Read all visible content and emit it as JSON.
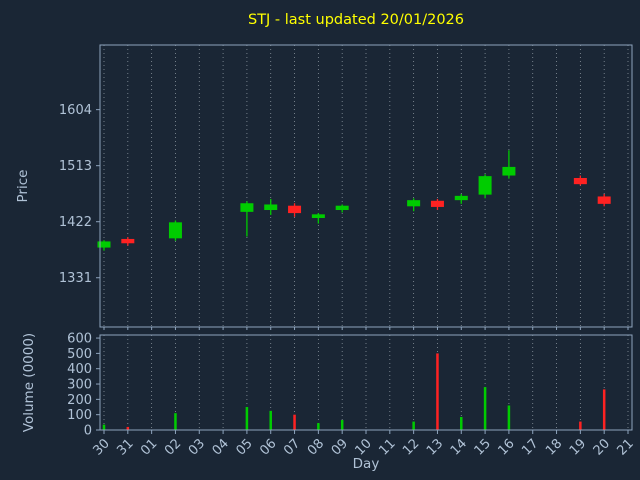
{
  "chart_data": {
    "type": "candlestick",
    "title": "STJ - last updated 20/01/2026",
    "xlabel": "Day",
    "price_axis": {
      "label": "Price",
      "ticks": [
        1331,
        1422,
        1513,
        1604
      ],
      "range": [
        1251,
        1709
      ]
    },
    "volume_axis": {
      "label": "Volume (0000)",
      "ticks": [
        0,
        100,
        200,
        300,
        400,
        500,
        600
      ],
      "range": [
        0,
        620
      ]
    },
    "x_categories": [
      "30",
      "31",
      "01",
      "02",
      "03",
      "04",
      "05",
      "06",
      "07",
      "08",
      "09",
      "10",
      "11",
      "12",
      "13",
      "14",
      "15",
      "16",
      "17",
      "18",
      "19",
      "20",
      "21"
    ],
    "legend": "none",
    "grid": "vertical-dotted",
    "colors": {
      "background": "#1a2635",
      "up": "#00cc00",
      "down": "#ff2222",
      "title": "#ffff00",
      "text": "#b0c2d6",
      "axis": "#8ea4bd",
      "grid": "#8a949e"
    },
    "candles": [
      {
        "x": "30",
        "open": 1380,
        "high": 1392,
        "low": 1375,
        "close": 1390,
        "volume": 35
      },
      {
        "x": "31",
        "open": 1394,
        "high": 1397,
        "low": 1383,
        "close": 1387,
        "volume": 20
      },
      {
        "x": "02",
        "open": 1395,
        "high": 1424,
        "low": 1391,
        "close": 1421,
        "volume": 110
      },
      {
        "x": "05",
        "open": 1438,
        "high": 1455,
        "low": 1398,
        "close": 1452,
        "volume": 150
      },
      {
        "x": "06",
        "open": 1441,
        "high": 1459,
        "low": 1433,
        "close": 1450,
        "volume": 125
      },
      {
        "x": "07",
        "open": 1448,
        "high": 1452,
        "low": 1430,
        "close": 1436,
        "volume": 100
      },
      {
        "x": "08",
        "open": 1428,
        "high": 1436,
        "low": 1419,
        "close": 1434,
        "volume": 45
      },
      {
        "x": "09",
        "open": 1441,
        "high": 1450,
        "low": 1437,
        "close": 1448,
        "volume": 65
      },
      {
        "x": "12",
        "open": 1447,
        "high": 1460,
        "low": 1439,
        "close": 1457,
        "volume": 55
      },
      {
        "x": "13",
        "open": 1456,
        "high": 1459,
        "low": 1441,
        "close": 1446,
        "volume": 500
      },
      {
        "x": "14",
        "open": 1457,
        "high": 1467,
        "low": 1451,
        "close": 1464,
        "volume": 85
      },
      {
        "x": "15",
        "open": 1466,
        "high": 1499,
        "low": 1460,
        "close": 1496,
        "volume": 280
      },
      {
        "x": "16",
        "open": 1497,
        "high": 1538,
        "low": 1492,
        "close": 1511,
        "volume": 160
      },
      {
        "x": "19",
        "open": 1493,
        "high": 1497,
        "low": 1481,
        "close": 1483,
        "volume": 55
      },
      {
        "x": "20",
        "open": 1463,
        "high": 1467,
        "low": 1447,
        "close": 1451,
        "volume": 265
      }
    ]
  }
}
